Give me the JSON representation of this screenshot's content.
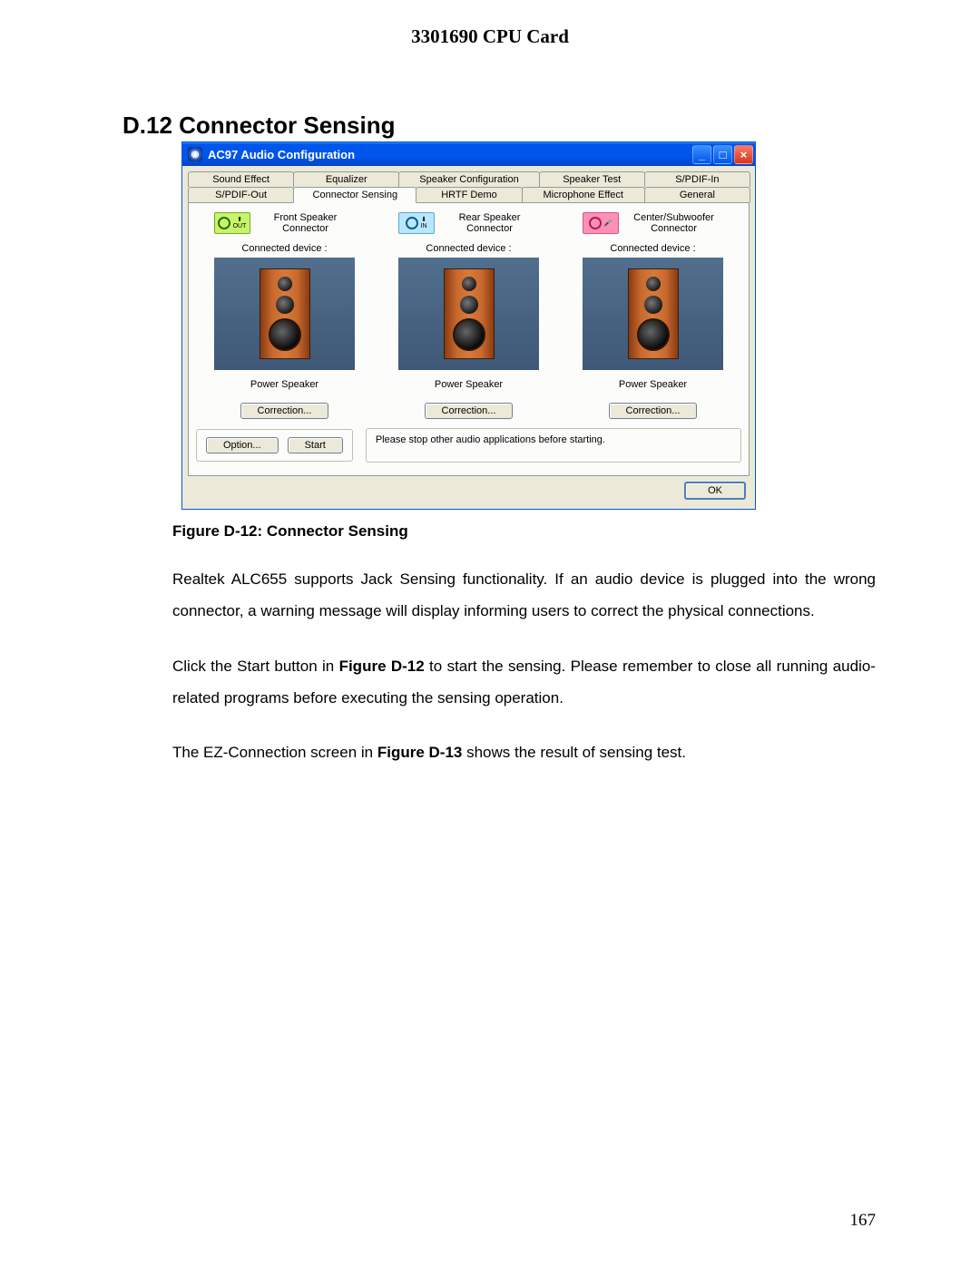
{
  "doc": {
    "header": "3301690 CPU Card",
    "section_heading": "D.12  Connector Sensing",
    "figure_caption": "Figure D-12: Connector Sensing",
    "para1_a": "Realtek ALC655 supports Jack Sensing functionality.   If an audio device is plugged into the wrong connector, a warning message will display informing users to correct the physical connections.",
    "para2_pre": "Click the Start button in ",
    "para2_bold": "Figure D-12",
    "para2_post": " to start the sensing.   Please remember to close all running audio-related programs before executing the sensing operation.",
    "para3_pre": "The EZ-Connection screen in ",
    "para3_bold": "Figure D-13",
    "para3_post": " shows the result of sensing test.",
    "page_number": "167"
  },
  "window": {
    "title": "AC97 Audio Configuration",
    "tabs_row1": [
      "Sound Effect",
      "Equalizer",
      "Speaker Configuration",
      "Speaker Test",
      "S/PDIF-In"
    ],
    "tabs_row2": [
      "S/PDIF-Out",
      "Connector Sensing",
      "HRTF Demo",
      "Microphone Effect",
      "General"
    ],
    "active_tab": "Connector Sensing",
    "hint": "Please stop other audio applications before starting.",
    "option_btn": "Option...",
    "start_btn": "Start",
    "ok_btn": "OK",
    "minimize_icon": "_",
    "maximize_icon": "□",
    "close_icon": "×"
  },
  "connectors": [
    {
      "title_line1": "Front Speaker",
      "title_line2": "Connector",
      "jack_bg": "#c7f56a",
      "jack_border": "#7aa531",
      "hole_border": "#2f6b12",
      "glyph": "⬆\nOUT",
      "connected_label": "Connected device :",
      "device_label": "Power Speaker",
      "correction_btn": "Correction..."
    },
    {
      "title_line1": "Rear Speaker",
      "title_line2": "Connector",
      "jack_bg": "#b9e7ff",
      "jack_border": "#5fa9c8",
      "hole_border": "#0a5f87",
      "glyph": "⬇\nIN",
      "connected_label": "Connected device :",
      "device_label": "Power Speaker",
      "correction_btn": "Correction..."
    },
    {
      "title_line1": "Center/Subwoofer",
      "title_line2": "Connector",
      "jack_bg": "#ff8fb7",
      "jack_border": "#d35585",
      "hole_border": "#a22455",
      "glyph": "🎤",
      "connected_label": "Connected device :",
      "device_label": "Power Speaker",
      "correction_btn": "Correction..."
    }
  ],
  "style": {
    "titlebar_gradient_top": "#3a91ff",
    "titlebar_gradient_bottom": "#0046c8",
    "win_bg": "#ece9d8",
    "tab_body_bg": "#fcfcfb",
    "speaker_bg_top": "#516f8e",
    "speaker_bg_bottom": "#3f5877",
    "speaker_box_color": "#c86a2e"
  }
}
